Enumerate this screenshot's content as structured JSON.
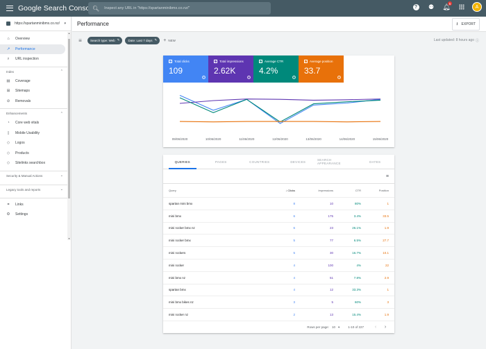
{
  "app": {
    "title": "Google Search Console",
    "search_placeholder": "Inspect any URL in \"https://spartanminibmx.co.nz/\"",
    "notification_count": "5",
    "avatar_initial": "A"
  },
  "sidebar": {
    "property": "https://spartanminibmx.co.nz/",
    "top_items": [
      {
        "label": "Overview",
        "icon": "home-icon"
      },
      {
        "label": "Performance",
        "icon": "trending-icon"
      },
      {
        "label": "URL inspection",
        "icon": "search-icon"
      }
    ],
    "index": {
      "label": "Index",
      "items": [
        {
          "label": "Coverage",
          "icon": "coverage-icon"
        },
        {
          "label": "Sitemaps",
          "icon": "sitemap-icon"
        },
        {
          "label": "Removals",
          "icon": "removals-icon"
        }
      ]
    },
    "enhancements": {
      "label": "Enhancements",
      "items": [
        {
          "label": "Core web vitals",
          "icon": "speed-icon"
        },
        {
          "label": "Mobile Usability",
          "icon": "phone-icon"
        },
        {
          "label": "Logos",
          "icon": "logo-icon"
        },
        {
          "label": "Products",
          "icon": "product-icon"
        },
        {
          "label": "Sitelinks searchbox",
          "icon": "searchbox-icon"
        }
      ]
    },
    "security_label": "Security & Manual Actions",
    "legacy_label": "Legacy tools and reports",
    "bottom_items": [
      {
        "label": "Links",
        "icon": "link-icon"
      },
      {
        "label": "Settings",
        "icon": "gear-icon"
      }
    ]
  },
  "header": {
    "title": "Performance",
    "export_label": "EXPORT"
  },
  "filters": {
    "search_type": "Search type: Web",
    "date": "Date: Last 7 days",
    "new_label": "NEW",
    "last_updated": "Last updated: 8 hours ago"
  },
  "metrics": [
    {
      "label": "Total clicks",
      "value": "109",
      "color": "#4285f4"
    },
    {
      "label": "Total impressions",
      "value": "2.62K",
      "color": "#5e35b1"
    },
    {
      "label": "Average CTR",
      "value": "4.2%",
      "color": "#00897b"
    },
    {
      "label": "Average position",
      "value": "33.7",
      "color": "#e8710a"
    }
  ],
  "chart_data": {
    "type": "line",
    "x": [
      "09/06/2020",
      "10/06/2020",
      "11/06/2020",
      "12/06/2020",
      "13/06/2020",
      "14/06/2020",
      "15/06/2020"
    ],
    "y_normalized": true,
    "series": [
      {
        "name": "Total clicks",
        "color": "#4285f4",
        "values": [
          0.82,
          0.45,
          0.72,
          0.12,
          0.58,
          0.63,
          0.72
        ]
      },
      {
        "name": "Total impressions",
        "color": "#5e35b1",
        "values": [
          0.62,
          0.69,
          0.73,
          0.72,
          0.7,
          0.71,
          0.73
        ]
      },
      {
        "name": "Average CTR",
        "color": "#00897b",
        "values": [
          0.76,
          0.39,
          0.72,
          0.16,
          0.61,
          0.66,
          0.7
        ]
      },
      {
        "name": "Average position",
        "color": "#e8710a",
        "values": [
          0.17,
          0.16,
          0.17,
          0.17,
          0.17,
          0.16,
          0.17
        ]
      }
    ]
  },
  "tabs": [
    "QUERIES",
    "PAGES",
    "COUNTRIES",
    "DEVICES",
    "SEARCH APPEARANCE",
    "DATES"
  ],
  "table": {
    "columns": {
      "query": "Query",
      "clicks": "Clicks",
      "impressions": "Impressions",
      "ctr": "CTR",
      "position": "Position"
    },
    "rows": [
      {
        "query": "spartan mini bmx",
        "clicks": "8",
        "impressions": "10",
        "ctr": "80%",
        "position": "1"
      },
      {
        "query": "mini bmx",
        "clicks": "6",
        "impressions": "175",
        "ctr": "3.4%",
        "position": "33.5"
      },
      {
        "query": "mini rocker bmx nz",
        "clicks": "6",
        "impressions": "23",
        "ctr": "26.1%",
        "position": "1.9"
      },
      {
        "query": "mini rocker bmx",
        "clicks": "5",
        "impressions": "77",
        "ctr": "6.5%",
        "position": "27.7"
      },
      {
        "query": "mini rockers",
        "clicks": "5",
        "impressions": "30",
        "ctr": "16.7%",
        "position": "10.1"
      },
      {
        "query": "mini rocker",
        "clicks": "4",
        "impressions": "100",
        "ctr": "4%",
        "position": "22"
      },
      {
        "query": "mini bmx nz",
        "clicks": "4",
        "impressions": "51",
        "ctr": "7.8%",
        "position": "2.9"
      },
      {
        "query": "spartan bmx",
        "clicks": "4",
        "impressions": "12",
        "ctr": "33.3%",
        "position": "1"
      },
      {
        "query": "mini bmx bikes nz",
        "clicks": "3",
        "impressions": "5",
        "ctr": "60%",
        "position": "3"
      },
      {
        "query": "mini rocker nz",
        "clicks": "2",
        "impressions": "13",
        "ctr": "15.4%",
        "position": "1.9"
      }
    ]
  },
  "pager": {
    "rows_label": "Rows per page:",
    "rows_value": "10",
    "range": "1-10 of 227"
  }
}
